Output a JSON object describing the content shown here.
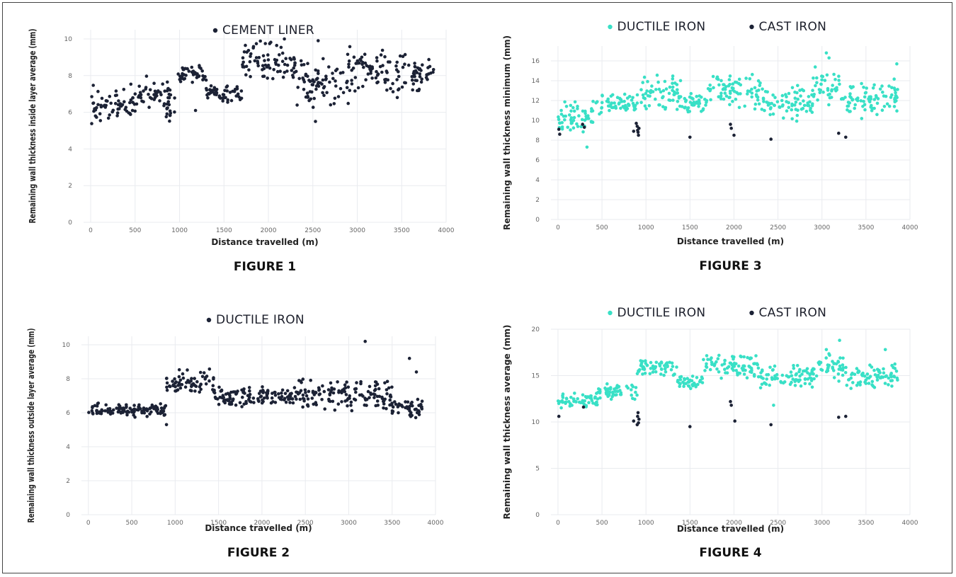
{
  "colors": {
    "dark": "#1c2235",
    "cyan": "#39e0c6"
  },
  "chart_data": [
    {
      "id": "fig1",
      "type": "scatter",
      "caption": "FIGURE 1",
      "xlabel": "Distance travelled (m)",
      "ylabel": "Remaining wall thickness inside layer average (mm)",
      "xlim": [
        -80,
        4000
      ],
      "ylim": [
        0,
        10.5
      ],
      "xticks": [
        0,
        500,
        1000,
        1500,
        2000,
        2500,
        3000,
        3500,
        4000
      ],
      "yticks": [
        0,
        2,
        4,
        6,
        8,
        10
      ],
      "grid": true,
      "legend_position": "top-center",
      "series": [
        {
          "name": "CEMENT LINER",
          "color": "#1c2235",
          "segments": [
            [
              0,
              450,
              5.0,
              7.5
            ],
            [
              450,
              900,
              6.0,
              8.0
            ],
            [
              850,
              950,
              5.0,
              7.0
            ],
            [
              950,
              1300,
              7.5,
              8.6
            ],
            [
              1300,
              1700,
              6.4,
              7.6
            ],
            [
              1700,
              2300,
              7.5,
              10.0
            ],
            [
              2300,
              2900,
              6.2,
              9.2
            ],
            [
              2900,
              3300,
              7.0,
              9.9
            ],
            [
              3300,
              3860,
              6.8,
              9.5
            ]
          ],
          "extra_points": [
            [
              1180,
              6.1
            ],
            [
              2530,
              5.5
            ],
            [
              2180,
              10.0
            ],
            [
              2560,
              9.9
            ],
            [
              3450,
              6.8
            ]
          ]
        }
      ]
    },
    {
      "id": "fig2",
      "type": "scatter",
      "caption": "FIGURE 2",
      "xlabel": "Distance travelled (m)",
      "ylabel": "Remaining wall thickness outside layer average (mm)",
      "xlim": [
        -80,
        4000
      ],
      "ylim": [
        0,
        10.5
      ],
      "xticks": [
        0,
        500,
        1000,
        1500,
        2000,
        2500,
        3000,
        3500,
        4000
      ],
      "yticks": [
        0,
        2,
        4,
        6,
        8,
        10
      ],
      "grid": true,
      "legend_position": "top-center",
      "series": [
        {
          "name": "DUCTILE IRON",
          "color": "#1c2235",
          "segments": [
            [
              0,
              900,
              5.7,
              6.6
            ],
            [
              900,
              1450,
              6.8,
              8.6
            ],
            [
              1450,
              2350,
              6.3,
              7.6
            ],
            [
              2350,
              3000,
              6.0,
              8.1
            ],
            [
              3000,
              3500,
              6.0,
              8.0
            ],
            [
              3500,
              3860,
              5.6,
              7.0
            ]
          ],
          "extra_points": [
            [
              3190,
              10.2
            ],
            [
              3700,
              9.2
            ],
            [
              3780,
              8.4
            ],
            [
              900,
              5.3
            ]
          ]
        }
      ]
    },
    {
      "id": "fig3",
      "type": "scatter",
      "caption": "FIGURE 3",
      "xlabel": "Distance travelled (m)",
      "ylabel": "Remaining wall thickness minimum (mm)",
      "xlim": [
        -80,
        4000
      ],
      "ylim": [
        0,
        17.5
      ],
      "xticks": [
        0,
        500,
        1000,
        1500,
        2000,
        2500,
        3000,
        3500,
        4000
      ],
      "yticks": [
        0,
        2,
        4,
        6,
        8,
        10,
        12,
        14,
        16
      ],
      "grid": true,
      "legend_position": "top-center",
      "series": [
        {
          "name": "DUCTILE IRON",
          "color": "#39e0c6",
          "segments": [
            [
              0,
              500,
              8.6,
              12.0
            ],
            [
              500,
              900,
              10.5,
              13.0
            ],
            [
              900,
              1400,
              10.8,
              14.8
            ],
            [
              1400,
              1700,
              10.5,
              13.0
            ],
            [
              1700,
              2300,
              11.0,
              15.0
            ],
            [
              2300,
              2900,
              9.8,
              14.0
            ],
            [
              2900,
              3200,
              11.0,
              15.5
            ],
            [
              3200,
              3860,
              10.0,
              14.5
            ]
          ],
          "extra_points": [
            [
              330,
              7.3
            ],
            [
              3050,
              16.8
            ],
            [
              3080,
              16.3
            ],
            [
              3850,
              15.7
            ]
          ]
        },
        {
          "name": "CAST IRON",
          "color": "#1c2235",
          "points": [
            [
              10,
              9.1
            ],
            [
              20,
              8.6
            ],
            [
              280,
              9.6
            ],
            [
              300,
              9.3
            ],
            [
              860,
              8.9
            ],
            [
              890,
              9.7
            ],
            [
              900,
              9.4
            ],
            [
              905,
              9.0
            ],
            [
              910,
              8.8
            ],
            [
              915,
              8.5
            ],
            [
              920,
              9.2
            ],
            [
              1500,
              8.3
            ],
            [
              1960,
              9.6
            ],
            [
              1970,
              9.2
            ],
            [
              2000,
              8.5
            ],
            [
              2420,
              8.1
            ],
            [
              3190,
              8.7
            ],
            [
              3270,
              8.3
            ]
          ]
        }
      ]
    },
    {
      "id": "fig4",
      "type": "scatter",
      "caption": "FIGURE 4",
      "xlabel": "Distance travelled (m)",
      "ylabel": "Remaining wall thickness average (mm)",
      "xlim": [
        -80,
        4000
      ],
      "ylim": [
        0,
        20
      ],
      "xticks": [
        0,
        500,
        1000,
        1500,
        2000,
        2500,
        3000,
        3500,
        4000
      ],
      "yticks": [
        0,
        5,
        10,
        15,
        20
      ],
      "grid": true,
      "legend_position": "top-center",
      "series": [
        {
          "name": "DUCTILE IRON",
          "color": "#39e0c6",
          "segments": [
            [
              0,
              450,
              11.2,
              13.2
            ],
            [
              450,
              900,
              12.2,
              14.2
            ],
            [
              900,
              1350,
              14.8,
              16.8
            ],
            [
              1350,
              1650,
              13.5,
              15.2
            ],
            [
              1650,
              2300,
              14.5,
              17.5
            ],
            [
              2300,
              2950,
              13.5,
              16.2
            ],
            [
              2950,
              3250,
              14.2,
              17.5
            ],
            [
              3250,
              3860,
              13.5,
              16.5
            ]
          ],
          "extra_points": [
            [
              3200,
              18.8
            ],
            [
              3050,
              17.8
            ],
            [
              3720,
              17.8
            ],
            [
              2450,
              11.8
            ]
          ]
        },
        {
          "name": "CAST IRON",
          "color": "#1c2235",
          "points": [
            [
              10,
              10.6
            ],
            [
              290,
              11.6
            ],
            [
              860,
              10.1
            ],
            [
              900,
              9.7
            ],
            [
              905,
              10.6
            ],
            [
              910,
              11.0
            ],
            [
              915,
              9.9
            ],
            [
              920,
              10.3
            ],
            [
              1500,
              9.5
            ],
            [
              1960,
              12.2
            ],
            [
              1970,
              11.8
            ],
            [
              2010,
              10.1
            ],
            [
              2420,
              9.7
            ],
            [
              3190,
              10.5
            ],
            [
              3270,
              10.6
            ]
          ]
        }
      ]
    }
  ]
}
